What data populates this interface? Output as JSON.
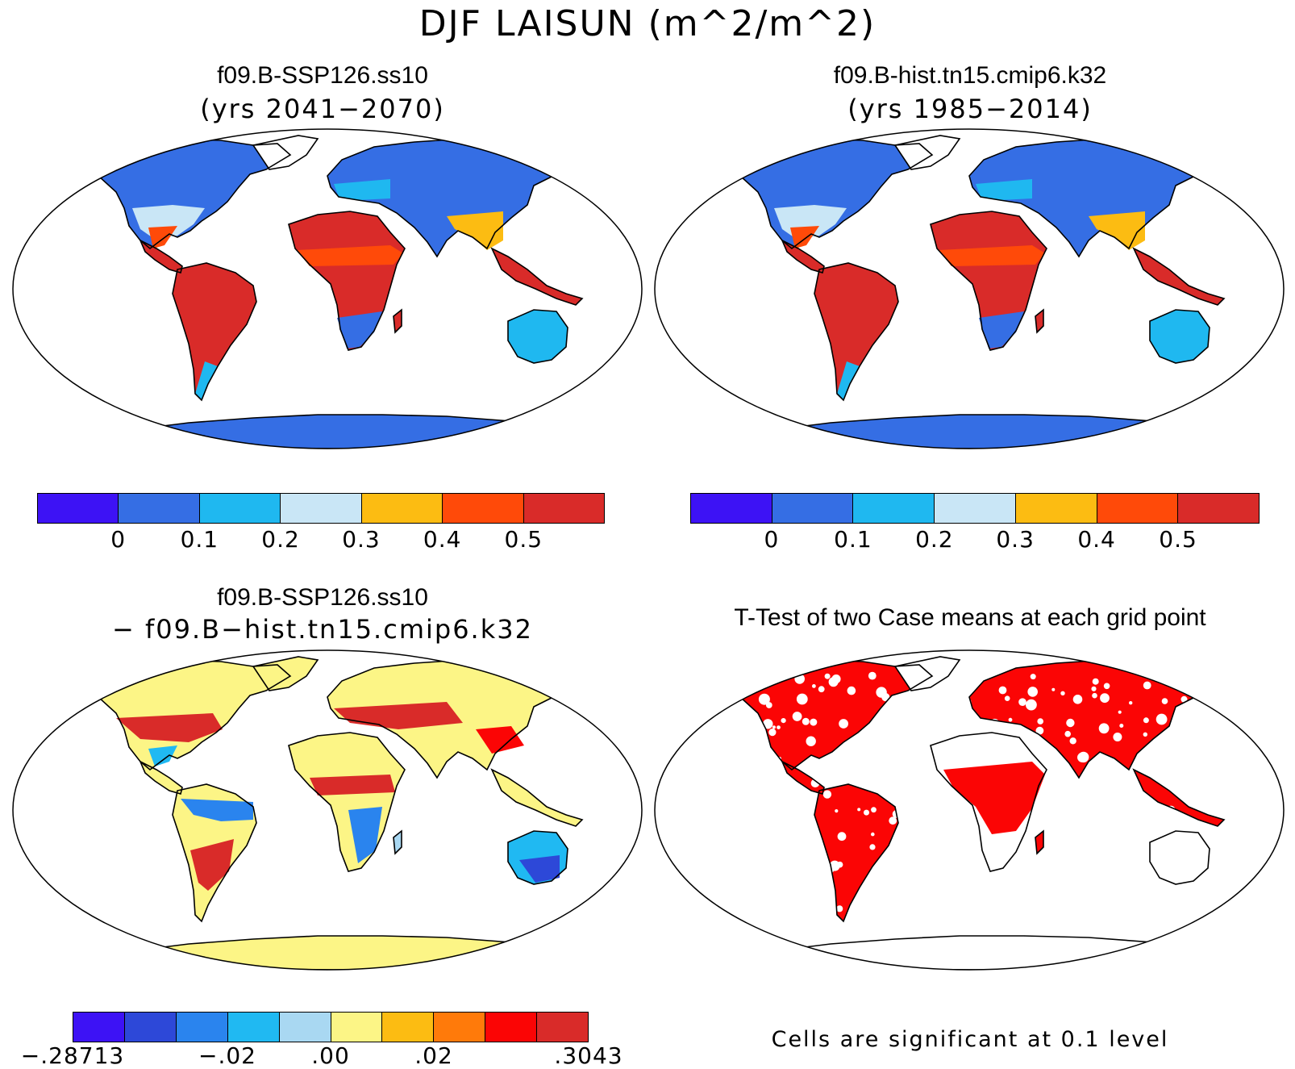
{
  "figure": {
    "title": "DJF LAISUN (m^2/m^2)"
  },
  "panels": {
    "top_left": {
      "title": "f09.B-SSP126.ss10",
      "subtitle": "(yrs 2041−2070)"
    },
    "top_right": {
      "title": "f09.B-hist.tn15.cmip6.k32",
      "subtitle": "(yrs 1985−2014)"
    },
    "bottom_left": {
      "title": "f09.B-SSP126.ss10",
      "subtitle": "− f09.B−hist.tn15.cmip6.k32"
    },
    "bottom_right": {
      "title": "T-Test of two Case means at each grid point",
      "note": "Cells are significant at 0.1 level"
    }
  },
  "colorbars": {
    "mean": {
      "colors": [
        "#3d12f5",
        "#356ee4",
        "#1fb8f0",
        "#c9e6f6",
        "#fcbc12",
        "#ff4a09",
        "#d92b29"
      ],
      "tick_labels": [
        "0",
        "0.1",
        "0.2",
        "0.3",
        "0.4",
        "0.5"
      ]
    },
    "difference": {
      "colors": [
        "#3d12f5",
        "#2d48d8",
        "#2a84ee",
        "#20b9f2",
        "#a9d8f2",
        "#fcf586",
        "#fcbc12",
        "#ff7a0a",
        "#fb0505",
        "#d92b29"
      ],
      "tick_labels": [
        "−.28713",
        "−.02",
        ".00",
        ".02",
        ".3043"
      ]
    }
  },
  "map_fill": {
    "ocean": "#ffffff",
    "coast": "#000000",
    "significant": "#fb0505"
  }
}
